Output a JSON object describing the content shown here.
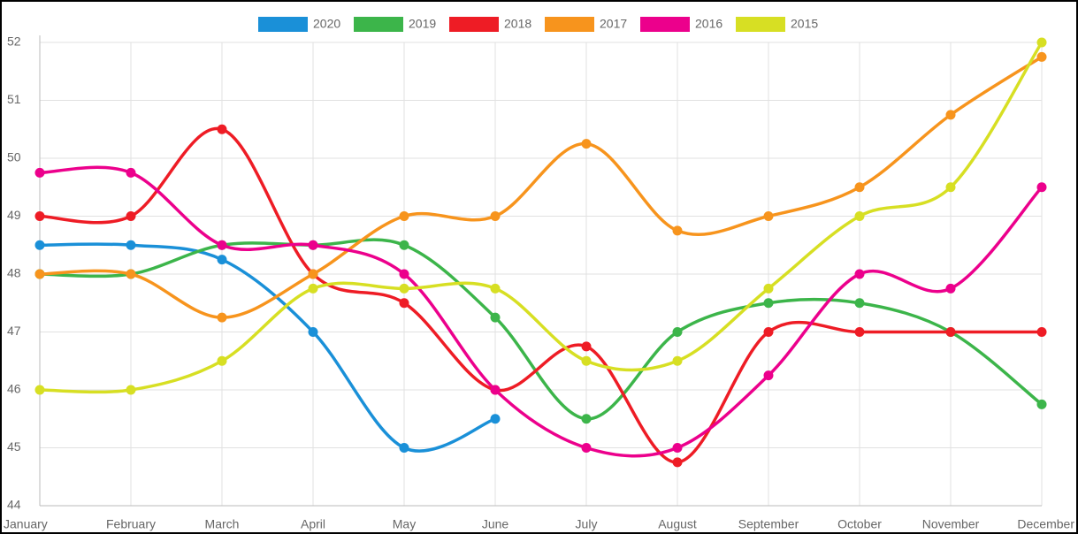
{
  "chart_data": {
    "type": "line",
    "categories": [
      "January",
      "February",
      "March",
      "April",
      "May",
      "June",
      "July",
      "August",
      "September",
      "October",
      "November",
      "December"
    ],
    "series": [
      {
        "name": "2020",
        "color": "#1a90d8",
        "values": [
          48.5,
          48.5,
          48.25,
          47,
          45,
          45.5,
          null,
          null,
          null,
          null,
          null,
          null
        ]
      },
      {
        "name": "2019",
        "color": "#3cb54a",
        "values": [
          48,
          48,
          48.5,
          48.5,
          48.5,
          47.25,
          45.5,
          47,
          47.5,
          47.5,
          47,
          45.75
        ]
      },
      {
        "name": "2018",
        "color": "#ee1c25",
        "values": [
          49,
          49,
          50.5,
          48,
          47.5,
          46,
          46.75,
          44.75,
          47,
          47,
          47,
          47
        ]
      },
      {
        "name": "2017",
        "color": "#f7941d",
        "values": [
          48,
          48,
          47.25,
          48,
          49,
          49,
          50.25,
          48.75,
          49,
          49.5,
          50.75,
          51.75
        ]
      },
      {
        "name": "2016",
        "color": "#ec008c",
        "values": [
          49.75,
          49.75,
          48.5,
          48.5,
          48,
          46,
          45,
          45,
          46.25,
          48,
          47.75,
          49.5
        ]
      },
      {
        "name": "2015",
        "color": "#d7df23",
        "values": [
          46,
          46,
          46.5,
          47.75,
          47.75,
          47.75,
          46.5,
          46.5,
          47.75,
          49,
          49.5,
          52
        ]
      }
    ],
    "ylim": [
      44,
      52
    ],
    "yticks": [
      44,
      45,
      46,
      47,
      48,
      49,
      50,
      51,
      52
    ],
    "grid": true,
    "legend": "top"
  }
}
